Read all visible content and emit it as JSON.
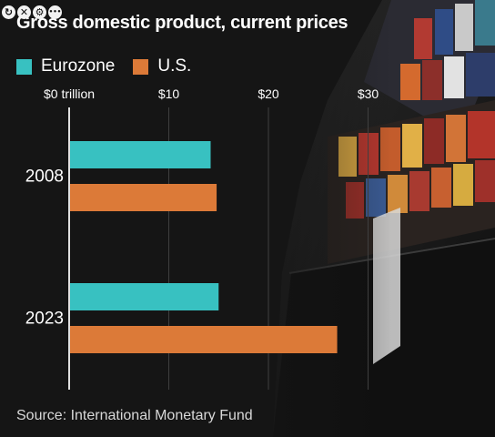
{
  "toolbar": {
    "icons": [
      {
        "name": "refresh-icon",
        "glyph": "↻"
      },
      {
        "name": "close-icon",
        "glyph": "✕"
      },
      {
        "name": "settings-icon",
        "glyph": "⚙"
      },
      {
        "name": "more-icon",
        "glyph": "•••"
      }
    ]
  },
  "colors": {
    "eurozone": "#38c1c1",
    "us": "#dc7a38",
    "axis": "#e0e0e0",
    "grid": "#3f3f3f",
    "text": "#ffffff"
  },
  "chart_data": {
    "type": "bar",
    "orientation": "horizontal",
    "title": "Gross domestic product, current prices",
    "source": "Source: International Monetary Fund",
    "categories": [
      "2008",
      "2023"
    ],
    "series": [
      {
        "name": "Eurozone",
        "values": [
          14.2,
          15.0
        ]
      },
      {
        "name": "U.S.",
        "values": [
          14.8,
          26.9
        ]
      }
    ],
    "xlim": [
      0,
      30
    ],
    "xticks": [
      0,
      10,
      20,
      30
    ],
    "xtick_labels": [
      "$0 trillion",
      "$10",
      "$20",
      "$30"
    ],
    "grid": true,
    "legend_position": "top-left"
  }
}
